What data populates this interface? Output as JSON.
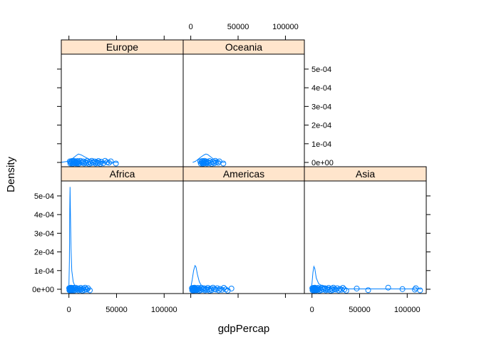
{
  "chart_data": {
    "type": "lattice-densityplot",
    "xlabel": "gdpPercap",
    "ylabel": "Density",
    "xlim": [
      -8000,
      120000
    ],
    "ylim": [
      -2.3e-05,
      0.00058
    ],
    "x_ticks": [
      0,
      50000,
      100000
    ],
    "x_tick_labels": [
      "0",
      "50000",
      "100000"
    ],
    "y_ticks": [
      0,
      0.0001,
      0.0002,
      0.0003,
      0.0004,
      0.0005
    ],
    "y_tick_labels": [
      "0e+00",
      "1e-04",
      "2e-04",
      "3e-04",
      "4e-04",
      "5e-04"
    ],
    "layout": [
      [
        "Europe",
        "Oceania"
      ],
      [
        "Africa",
        "Americas",
        "Asia"
      ]
    ],
    "colors": {
      "series": "#0080ff",
      "strip": "#ffe5cc",
      "frame": "#000000"
    },
    "panels": [
      {
        "name": "Europe",
        "density": [
          [
            -8000,
            1e-06
          ],
          [
            -2000,
            5e-06
          ],
          [
            3000,
            1.8e-05
          ],
          [
            8000,
            3.8e-05
          ],
          [
            10000,
            4.5e-05
          ],
          [
            13000,
            4e-05
          ],
          [
            18000,
            2.6e-05
          ],
          [
            23000,
            1.4e-05
          ],
          [
            28000,
            8e-06
          ],
          [
            34000,
            5e-06
          ],
          [
            40000,
            3e-06
          ],
          [
            46000,
            1e-06
          ],
          [
            52000,
            0.0
          ]
        ],
        "points": [
          974,
          1500,
          2000,
          2500,
          3000,
          3500,
          4000,
          4500,
          5000,
          5500,
          6000,
          6500,
          7000,
          7500,
          8000,
          8500,
          9000,
          9500,
          10000,
          10500,
          11000,
          12000,
          13000,
          14000,
          15000,
          16000,
          17000,
          18000,
          19000,
          20000,
          21000,
          22000,
          23000,
          24000,
          25000,
          26000,
          27000,
          28000,
          29000,
          30000,
          31000,
          32000,
          33000,
          34000,
          36000,
          38000,
          40000,
          42000,
          44000,
          49357
        ]
      },
      {
        "name": "Oceania",
        "density": [
          [
            2000,
            0.0
          ],
          [
            5000,
            6e-06
          ],
          [
            8000,
            1.8e-05
          ],
          [
            11000,
            3e-05
          ],
          [
            14000,
            4e-05
          ],
          [
            16000,
            4.5e-05
          ],
          [
            18000,
            4.2e-05
          ],
          [
            21000,
            3e-05
          ],
          [
            24000,
            1.8e-05
          ],
          [
            27000,
            9e-06
          ],
          [
            30000,
            4e-06
          ],
          [
            33000,
            1e-06
          ],
          [
            36000,
            0.0
          ]
        ],
        "points": [
          10040,
          10600,
          11200,
          11900,
          12200,
          12800,
          13000,
          13600,
          14000,
          14500,
          15000,
          15800,
          16500,
          17000,
          18000,
          19000,
          20000,
          21000,
          22000,
          23400,
          24700,
          26000,
          26900,
          29000,
          30200,
          34400
        ]
      },
      {
        "name": "Africa",
        "density": [
          [
            -1500,
            0.0
          ],
          [
            0,
            2e-05
          ],
          [
            500,
            0.00015
          ],
          [
            900,
            0.00043
          ],
          [
            1200,
            0.000548
          ],
          [
            1600,
            0.0004
          ],
          [
            2200,
            0.00022
          ],
          [
            3000,
            0.0001
          ],
          [
            4500,
            4e-05
          ],
          [
            6500,
            1.5e-05
          ],
          [
            9000,
            5e-06
          ],
          [
            13000,
            2e-06
          ],
          [
            18000,
            1e-06
          ],
          [
            23000,
            0.0
          ]
        ],
        "points": [
          241,
          500,
          700,
          900,
          1100,
          1300,
          1500,
          1700,
          1900,
          2100,
          2400,
          2700,
          3000,
          3300,
          3600,
          4000,
          4400,
          4800,
          5200,
          5700,
          6200,
          6800,
          7500,
          8200,
          9000,
          10000,
          11000,
          12000,
          12500,
          13000,
          14000,
          15000,
          16000,
          17000,
          18000,
          19000,
          20000,
          21951
        ]
      },
      {
        "name": "Americas",
        "density": [
          [
            0,
            1e-05
          ],
          [
            1500,
            5e-05
          ],
          [
            3000,
            0.0001
          ],
          [
            4500,
            0.000127
          ],
          [
            5500,
            0.00012
          ],
          [
            7000,
            8e-05
          ],
          [
            9000,
            4e-05
          ],
          [
            11000,
            2.2e-05
          ],
          [
            14000,
            1.2e-05
          ],
          [
            18000,
            8e-06
          ],
          [
            22000,
            7e-06
          ],
          [
            27000,
            6e-06
          ],
          [
            32000,
            4e-06
          ],
          [
            37000,
            2e-06
          ],
          [
            42000,
            0.0
          ]
        ],
        "points": [
          1202,
          1500,
          1800,
          2100,
          2400,
          2700,
          3000,
          3300,
          3600,
          4000,
          4400,
          4800,
          5200,
          5700,
          6200,
          6800,
          7400,
          8000,
          8700,
          9500,
          10300,
          11000,
          12000,
          13000,
          14000,
          15000,
          16000,
          17000,
          18000,
          19000,
          20000,
          21000,
          22000,
          23500,
          25000,
          26500,
          28000,
          29500,
          31000,
          33000,
          35000,
          37000,
          39000,
          42952
        ]
      },
      {
        "name": "Asia",
        "density": [
          [
            -1000,
            0.0
          ],
          [
            0,
            3e-05
          ],
          [
            1000,
            9e-05
          ],
          [
            2000,
            0.000122
          ],
          [
            3000,
            0.00011
          ],
          [
            4500,
            6e-05
          ],
          [
            7000,
            3e-05
          ],
          [
            10000,
            2e-05
          ],
          [
            14000,
            1.5e-05
          ],
          [
            20000,
            8e-06
          ],
          [
            26000,
            5e-06
          ],
          [
            32000,
            4e-06
          ],
          [
            40000,
            2e-06
          ],
          [
            50000,
            2e-06
          ],
          [
            60000,
            2e-06
          ],
          [
            70000,
            2e-06
          ],
          [
            80000,
            2e-06
          ],
          [
            90000,
            2e-06
          ],
          [
            100000,
            2e-06
          ],
          [
            110000,
            2e-06
          ],
          [
            115000,
            1e-06
          ]
        ],
        "points": [
          331,
          600,
          900,
          1200,
          1500,
          1800,
          2100,
          2400,
          2700,
          3000,
          3400,
          3800,
          4200,
          4700,
          5200,
          5800,
          6400,
          7000,
          7800,
          8600,
          9500,
          10500,
          11500,
          12500,
          13500,
          14500,
          15500,
          16500,
          17500,
          18500,
          19500,
          20500,
          21500,
          22500,
          23500,
          25000,
          26500,
          28000,
          29500,
          31000,
          32500,
          34000,
          36000,
          47000,
          59000,
          80000,
          95000,
          108000,
          109000,
          113523
        ]
      }
    ]
  }
}
